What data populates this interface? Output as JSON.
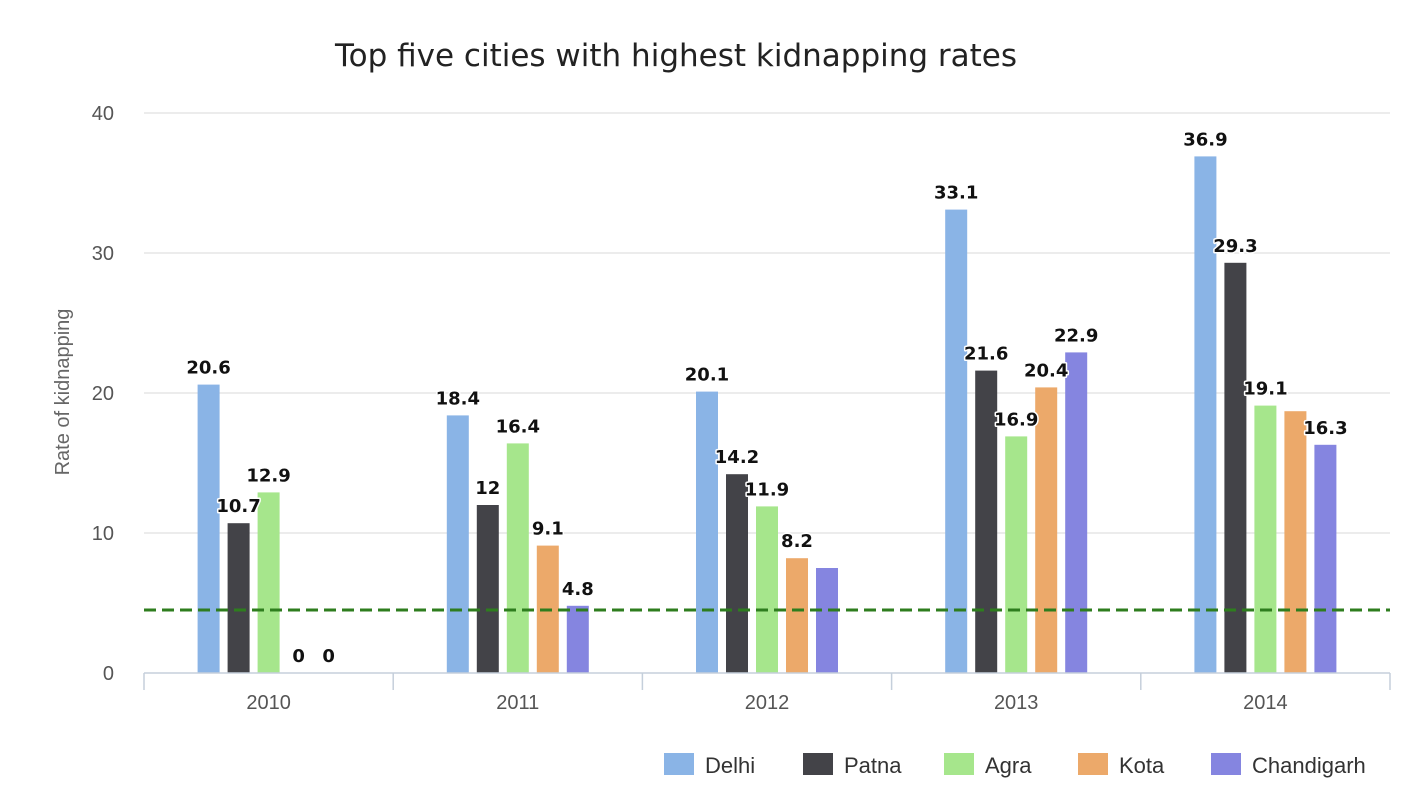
{
  "chart_data": {
    "type": "bar",
    "title": "Top five cities with highest kidnapping rates",
    "xlabel": "",
    "ylabel": "Rate of kidnapping",
    "categories": [
      "2010",
      "2011",
      "2012",
      "2013",
      "2014"
    ],
    "ylim": [
      0,
      40
    ],
    "yticks": [
      "0",
      "10",
      "20",
      "30",
      "40"
    ],
    "grid": true,
    "legend_position": "bottom-right",
    "reference_line": {
      "value": 4.5,
      "style": "dashed",
      "color": "#2e7d1e"
    },
    "series": [
      {
        "name": "Delhi",
        "color": "#8ab4e6",
        "values": [
          20.6,
          18.4,
          20.1,
          33.1,
          36.9
        ],
        "labels": [
          "20.6",
          "18.4",
          "20.1",
          "33.1",
          "36.9"
        ]
      },
      {
        "name": "Patna",
        "color": "#434348",
        "values": [
          10.7,
          12,
          14.2,
          21.6,
          29.3
        ],
        "labels": [
          "10.7",
          "12",
          "14.2",
          "21.6",
          "29.3"
        ]
      },
      {
        "name": "Agra",
        "color": "#a6e68c",
        "values": [
          12.9,
          16.4,
          11.9,
          16.9,
          19.1
        ],
        "labels": [
          "12.9",
          "16.4",
          "11.9",
          "16.9",
          "19.1"
        ]
      },
      {
        "name": "Kota",
        "color": "#eca96a",
        "values": [
          0,
          9.1,
          8.2,
          20.4,
          18.7
        ],
        "labels": [
          "0",
          "9.1",
          "8.2",
          "20.4",
          ""
        ]
      },
      {
        "name": "Chandigarh",
        "color": "#8585e0",
        "values": [
          0,
          4.8,
          7.5,
          22.9,
          16.3
        ],
        "labels": [
          "0",
          "4.8",
          "",
          "22.9",
          "16.3"
        ]
      }
    ]
  }
}
